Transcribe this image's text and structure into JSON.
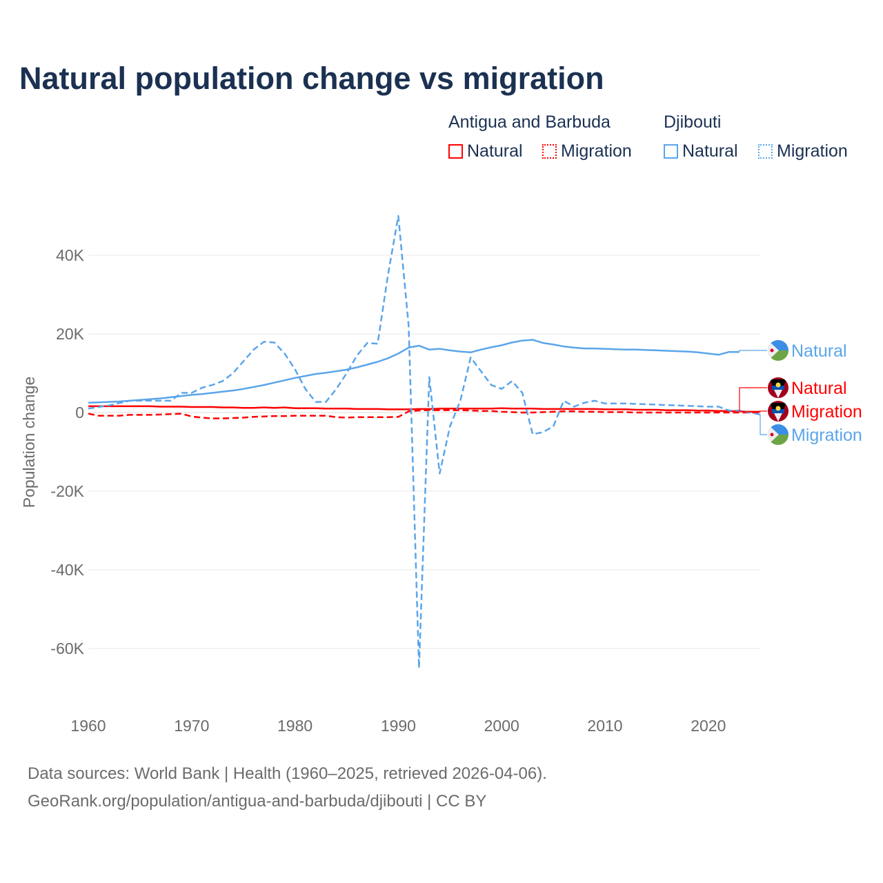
{
  "title": "Natural population change vs migration",
  "legend": {
    "groups": [
      {
        "name": "Antigua and Barbuda",
        "color": "#ff0000",
        "items": [
          "Natural",
          "Migration"
        ]
      },
      {
        "name": "Djibouti",
        "color": "#5aa5ea",
        "items": [
          "Natural",
          "Migration"
        ]
      }
    ]
  },
  "source": {
    "line1": "Data sources: World Bank | Health (1960–2025, retrieved 2026-04-06).",
    "line2": "GeoRank.org/population/antigua-and-barbuda/djibouti | CC BY"
  },
  "chart_data": {
    "type": "line",
    "title": "Natural population change vs migration",
    "xlabel": "",
    "ylabel": "Population change",
    "xlim": [
      1960,
      2025
    ],
    "ylim": [
      -70000,
      50000
    ],
    "x_ticks": [
      1960,
      1970,
      1980,
      1990,
      2000,
      2010,
      2020
    ],
    "x_tick_labels": [
      "1960",
      "1970",
      "1980",
      "1990",
      "2000",
      "2010",
      "2020"
    ],
    "y_ticks": [
      -60000,
      -40000,
      -20000,
      0,
      20000,
      40000
    ],
    "y_tick_labels": [
      "-60K",
      "-40K",
      "-20K",
      "0",
      "20K",
      "40K"
    ],
    "grid": true,
    "x_start": 1960,
    "series": [
      {
        "name": "Djibouti Natural",
        "label": "Natural",
        "country": "Djibouti",
        "color": "#5aa5ea",
        "dash": false,
        "values": [
          2.5,
          2.6,
          2.7,
          2.8,
          3.0,
          3.2,
          3.4,
          3.6,
          3.9,
          4.2,
          4.5,
          4.7,
          5.0,
          5.3,
          5.6,
          6.0,
          6.5,
          7.0,
          7.6,
          8.2,
          8.8,
          9.3,
          9.8,
          10.1,
          10.5,
          10.9,
          11.5,
          12.2,
          12.9,
          13.8,
          15.0,
          16.5,
          17.0,
          16.0,
          16.2,
          15.8,
          15.5,
          15.3,
          16.0,
          16.6,
          17.1,
          17.8,
          18.3,
          18.5,
          17.7,
          17.3,
          16.8,
          16.5,
          16.3,
          16.3,
          16.2,
          16.1,
          16.0,
          16.0,
          15.9,
          15.8,
          15.7,
          15.6,
          15.5,
          15.3,
          15.0,
          14.7,
          15.4,
          15.4
        ]
      },
      {
        "name": "Antigua and Barbuda Natural",
        "label": "Natural",
        "country": "Antigua and Barbuda",
        "color": "#ff0000",
        "dash": false,
        "values": [
          1.6,
          1.6,
          1.6,
          1.6,
          1.6,
          1.6,
          1.6,
          1.5,
          1.5,
          1.5,
          1.4,
          1.4,
          1.4,
          1.3,
          1.3,
          1.2,
          1.2,
          1.3,
          1.2,
          1.3,
          1.1,
          1.1,
          1.1,
          1.0,
          1.0,
          1.0,
          0.9,
          0.9,
          0.9,
          0.8,
          0.8,
          0.8,
          0.9,
          0.9,
          1.0,
          1.0,
          1.0,
          1.0,
          1.0,
          1.0,
          1.1,
          1.0,
          1.0,
          1.0,
          0.9,
          0.9,
          0.9,
          0.9,
          0.9,
          0.9,
          0.8,
          0.8,
          0.8,
          0.7,
          0.7,
          0.7,
          0.6,
          0.6,
          0.6,
          0.5,
          0.5,
          0.4,
          0.4,
          0.3,
          0.2,
          0.2
        ]
      },
      {
        "name": "Antigua and Barbuda Migration",
        "label": "Migration",
        "country": "Antigua and Barbuda",
        "color": "#ff0000",
        "dash": true,
        "values": [
          -0.3,
          -0.8,
          -0.8,
          -0.8,
          -0.6,
          -0.6,
          -0.6,
          -0.5,
          -0.4,
          -0.3,
          -1.0,
          -1.3,
          -1.5,
          -1.5,
          -1.4,
          -1.3,
          -1.1,
          -1.0,
          -0.9,
          -0.9,
          -0.8,
          -0.8,
          -0.8,
          -0.8,
          -1.2,
          -1.3,
          -1.2,
          -1.2,
          -1.2,
          -1.2,
          -1.1,
          0.3,
          0.5,
          0.6,
          0.6,
          0.6,
          0.6,
          0.5,
          0.4,
          0.4,
          0.2,
          0.1,
          0.0,
          0.0,
          0.1,
          0.2,
          0.3,
          0.3,
          0.2,
          0.2,
          0.1,
          0.1,
          0.1,
          0.0,
          0.0,
          0.0,
          0.0,
          0.0,
          0.0,
          0.0,
          0.0,
          0.0,
          0.0,
          0.0,
          0.0,
          0.0
        ]
      },
      {
        "name": "Djibouti Migration",
        "label": "Migration",
        "country": "Djibouti",
        "color": "#5aa5ea",
        "dash": true,
        "values": [
          1.0,
          1.4,
          1.8,
          2.4,
          3.0,
          3.0,
          3.0,
          3.0,
          3.0,
          5.0,
          5.0,
          6.3,
          7.0,
          8.0,
          10.0,
          13.0,
          16.0,
          18.0,
          17.8,
          15.0,
          11.0,
          6.0,
          2.7,
          2.7,
          6.0,
          10.0,
          14.5,
          17.7,
          17.5,
          35.0,
          50.0,
          22.0,
          -65.0,
          9.0,
          -15.5,
          -3.5,
          3.0,
          14.0,
          10.5,
          7.0,
          6.0,
          8.0,
          5.0,
          -5.5,
          -5.0,
          -3.5,
          3.0,
          1.5,
          2.5,
          3.0,
          2.3,
          2.3,
          2.3,
          2.2,
          2.1,
          2.0,
          1.9,
          1.8,
          1.7,
          1.6,
          1.5,
          1.5,
          0.5,
          0.5,
          0.0,
          -0.5
        ]
      }
    ],
    "value_unit": "thousands"
  }
}
